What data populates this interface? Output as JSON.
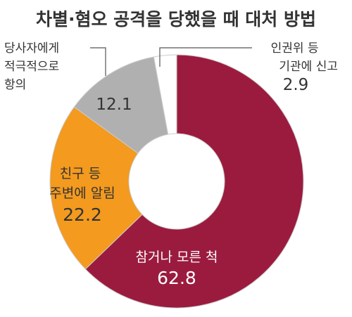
{
  "chart_data": {
    "type": "pie",
    "donut": true,
    "title": "차별·혐오 공격을 당했을 때 대처 방법",
    "start": "12 o'clock, clockwise",
    "slices": [
      {
        "label": "참거나 모른 척",
        "value": 62.8,
        "value_text": "62.8",
        "color": "#9b1b3e",
        "text_color": "#ffffff",
        "label_position": "inside"
      },
      {
        "label": "친구 등 주변에 알림",
        "value": 22.2,
        "value_text": "22.2",
        "color": "#f39a1f",
        "text_color": "#333333",
        "label_position": "inside"
      },
      {
        "label": "당사자에게 적극적으로 항의",
        "value": 12.1,
        "value_text": "12.1",
        "color": "#b0b0b0",
        "text_color": "#333333",
        "label_position": "outside-left"
      },
      {
        "label": "인권위 등 기관에 신고",
        "value": 2.9,
        "value_text": "2.9",
        "color": "#ffffff",
        "text_color": "#333333",
        "label_position": "outside-right"
      }
    ],
    "label_lines": {
      "s0": [
        "참거나 모른 척"
      ],
      "s1": [
        "친구 등",
        "주변에 알림"
      ],
      "s2": [
        "당사자에게",
        "적극적으로",
        "항의"
      ],
      "s3": [
        "인권위 등",
        "기관에 신고"
      ]
    },
    "stroke_color": "#cccccc",
    "leader_color": "#555555"
  }
}
